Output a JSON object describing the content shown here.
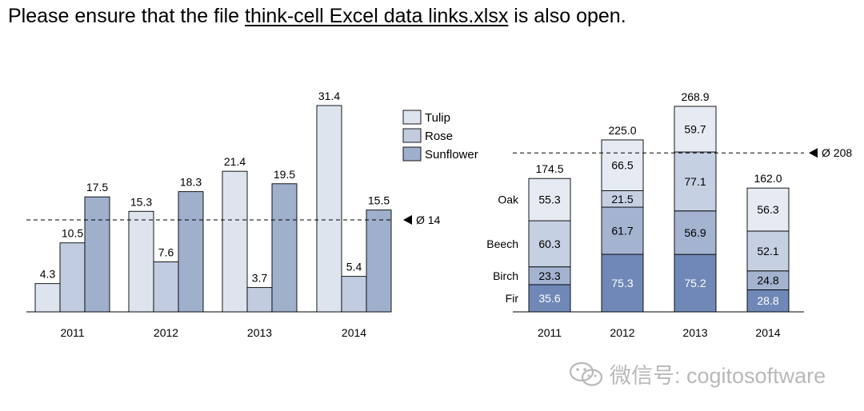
{
  "header": {
    "prefix": "Please ensure that the file ",
    "link": "think-cell Excel data links.xlsx",
    "suffix": " is also open."
  },
  "watermark": {
    "text": "微信号: cogitosoftware",
    "icon": "wechat-icon"
  },
  "chart_data": [
    {
      "type": "bar",
      "categories": [
        "2011",
        "2012",
        "2013",
        "2014"
      ],
      "series": [
        {
          "name": "Tulip",
          "color": "#dde4ee",
          "values": [
            4.3,
            15.3,
            21.4,
            31.4
          ]
        },
        {
          "name": "Rose",
          "color": "#c1cce0",
          "values": [
            10.5,
            7.6,
            3.7,
            5.4
          ]
        },
        {
          "name": "Sunflower",
          "color": "#9fb0cc",
          "values": [
            17.5,
            18.3,
            19.5,
            15.5
          ]
        }
      ],
      "value_labels": [
        [
          "4.3",
          "15.3",
          "21.4",
          "31.4"
        ],
        [
          "10.5",
          "7.6",
          "3.7",
          "5.4"
        ],
        [
          "17.5",
          "18.3",
          "19.5",
          "15.5"
        ]
      ],
      "average": {
        "value": 14,
        "label": "Ø 14"
      },
      "ylim": [
        0,
        31.4
      ],
      "legend": "top-right",
      "grid": false
    },
    {
      "type": "bar",
      "stacked": true,
      "categories": [
        "2011",
        "2012",
        "2013",
        "2014"
      ],
      "series": [
        {
          "name": "Fir",
          "color": "#6f88b7",
          "label_color": "#ffffff",
          "values": [
            35.6,
            75.3,
            75.2,
            28.8
          ]
        },
        {
          "name": "Birch",
          "color": "#a3b3d0",
          "label_color": "#000000",
          "values": [
            23.3,
            61.7,
            56.9,
            24.8
          ]
        },
        {
          "name": "Beech",
          "color": "#c6d0e3",
          "label_color": "#000000",
          "values": [
            60.3,
            21.5,
            77.1,
            52.1
          ]
        },
        {
          "name": "Oak",
          "color": "#e6ebf3",
          "label_color": "#000000",
          "values": [
            55.3,
            66.5,
            59.7,
            56.3
          ]
        }
      ],
      "value_labels": [
        [
          "35.6",
          "75.3",
          "75.2",
          "28.8"
        ],
        [
          "23.3",
          "61.7",
          "56.9",
          "24.8"
        ],
        [
          "60.3",
          "21.5",
          "77.1",
          "52.1"
        ],
        [
          "55.3",
          "66.5",
          "59.7",
          "56.3"
        ]
      ],
      "totals": [
        174.5,
        225.0,
        268.9,
        162.0
      ],
      "total_labels": [
        "174.5",
        "225.0",
        "268.9",
        "162.0"
      ],
      "average": {
        "value": 208,
        "label": "Ø 208"
      },
      "ylim": [
        0,
        268.9
      ],
      "legend": "left of first column",
      "grid": false
    }
  ]
}
